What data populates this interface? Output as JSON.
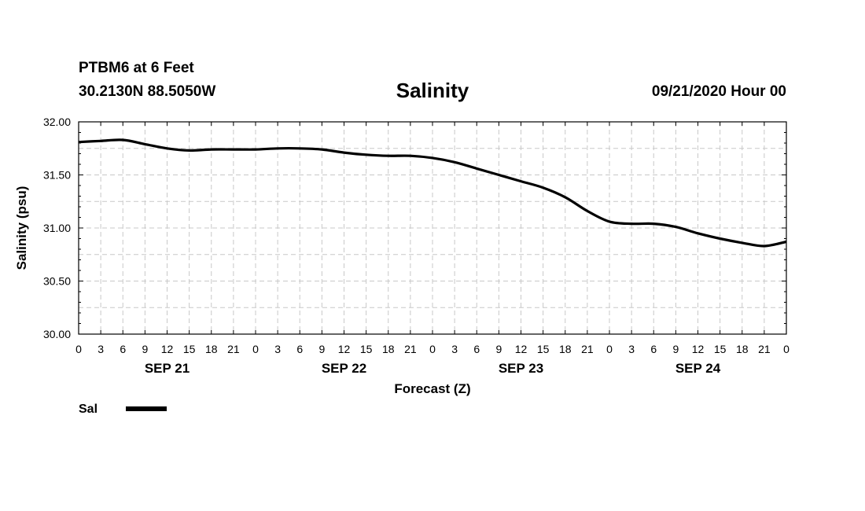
{
  "header": {
    "station": "PTBM6 at 6 Feet",
    "coords": "30.2130N 88.5050W",
    "title": "Salinity",
    "run": "09/21/2020 Hour 00"
  },
  "chart_data": {
    "type": "line",
    "title": "Salinity",
    "xlabel": "Forecast (Z)",
    "ylabel": "Salinity (psu)",
    "ylim": [
      30.0,
      32.0
    ],
    "yticks": [
      "30.00",
      "30.50",
      "31.00",
      "31.50",
      "32.00"
    ],
    "xlim_hours": [
      0,
      96
    ],
    "xtick_labels": [
      "0",
      "3",
      "6",
      "9",
      "12",
      "15",
      "18",
      "21",
      "0",
      "3",
      "6",
      "9",
      "12",
      "15",
      "18",
      "21",
      "0",
      "3",
      "6",
      "9",
      "12",
      "15",
      "18",
      "21",
      "0",
      "3",
      "6",
      "9",
      "12",
      "15",
      "18",
      "21",
      "0"
    ],
    "day_labels": [
      {
        "hour": 12,
        "label": "SEP 21"
      },
      {
        "hour": 36,
        "label": "SEP 22"
      },
      {
        "hour": 60,
        "label": "SEP 23"
      },
      {
        "hour": 84,
        "label": "SEP 24"
      }
    ],
    "grid": true,
    "legend": "bottom-left",
    "series": [
      {
        "name": "Sal",
        "color": "#000000",
        "x": [
          0,
          3,
          6,
          9,
          12,
          15,
          18,
          21,
          24,
          27,
          30,
          33,
          36,
          39,
          42,
          45,
          48,
          51,
          54,
          57,
          60,
          63,
          66,
          69,
          72,
          75,
          78,
          81,
          84,
          87,
          90,
          93,
          96
        ],
        "values": [
          31.81,
          31.82,
          31.83,
          31.79,
          31.75,
          31.73,
          31.74,
          31.74,
          31.74,
          31.75,
          31.75,
          31.74,
          31.71,
          31.69,
          31.68,
          31.68,
          31.66,
          31.62,
          31.56,
          31.5,
          31.44,
          31.38,
          31.29,
          31.16,
          31.06,
          31.04,
          31.04,
          31.01,
          30.95,
          30.9,
          30.86,
          30.83,
          30.87
        ]
      }
    ]
  }
}
